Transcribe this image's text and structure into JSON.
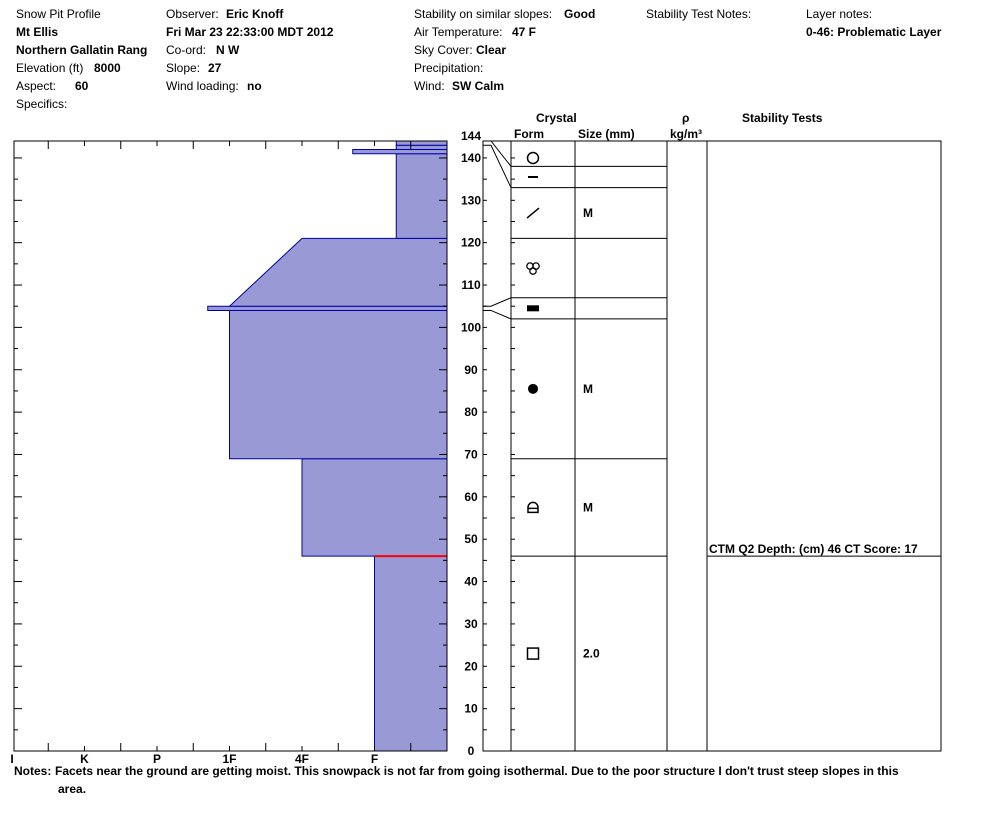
{
  "header": {
    "col1": {
      "title": "Snow Pit Profile",
      "location": "Mt Ellis",
      "range": "Northern Gallatin Rang",
      "elevation_label": "Elevation (ft)",
      "elevation_value": "8000",
      "aspect_label": "Aspect:",
      "aspect_value": "60",
      "specifics_label": "Specifics:"
    },
    "col2": {
      "observer_label": "Observer:",
      "observer_value": "Eric Knoff",
      "date": "Fri Mar 23 22:33:00 MDT 2012",
      "coord_label": "Co-ord:",
      "coord_value": "N  W",
      "slope_label": "Slope:",
      "slope_value": "27",
      "wind_loading_label": "Wind loading:",
      "wind_loading_value": "no"
    },
    "col3": {
      "stability_label": "Stability on similar slopes:",
      "stability_value": "Good",
      "air_temp_label": "Air Temperature:",
      "air_temp_value": "47 F",
      "sky_label": "Sky Cover:",
      "sky_value": "Clear",
      "precip_label": "Precipitation:",
      "wind_label": "Wind:",
      "wind_value": "SW Calm"
    },
    "col4": {
      "stability_test_notes_label": "Stability Test Notes:"
    },
    "col5": {
      "layer_notes_label": "Layer notes:",
      "layer_notes_value": "0-46: Problematic Layer"
    }
  },
  "table_headers": {
    "crystal": "Crystal",
    "form": "Form",
    "size": "Size (mm)",
    "rho": "ρ",
    "density_unit": "kg/m³",
    "stability_tests": "Stability Tests"
  },
  "chart_data": {
    "type": "area",
    "ylim": [
      0,
      144
    ],
    "y_ticks": [
      0,
      10,
      20,
      30,
      40,
      50,
      60,
      70,
      80,
      90,
      100,
      110,
      120,
      130,
      140,
      144
    ],
    "hardness_scale": [
      "F",
      "4F",
      "1F",
      "P",
      "K",
      "I"
    ],
    "hardness_axis_labels": [
      "I",
      "K",
      "P",
      "1F",
      "4F",
      "F"
    ],
    "hardness_layers": [
      {
        "bottom": 0,
        "top": 46,
        "hardness": 1.0
      },
      {
        "bottom": 46,
        "top": 69,
        "hardness": 2.0
      },
      {
        "bottom": 69,
        "top": 104,
        "hardness": 3.0
      },
      {
        "bottom": 104,
        "top": 105,
        "hardness": 3.3
      },
      {
        "bottom": 105,
        "top": 121,
        "hardness_bottom": 3.0,
        "hardness_top": 2.0
      },
      {
        "bottom": 121,
        "top": 141,
        "hardness": 0.7
      },
      {
        "bottom": 141,
        "top": 142,
        "hardness": 1.3
      },
      {
        "bottom": 142,
        "top": 143,
        "hardness": 0.7
      },
      {
        "bottom": 143,
        "top": 144,
        "hardness": 0.7
      }
    ],
    "problem_line_depth": 46,
    "crystal_layers": [
      {
        "bottom": 0,
        "top": 46,
        "form": "faceted",
        "size": "2.0"
      },
      {
        "bottom": 46,
        "top": 69,
        "form": "rounding-faceted",
        "size": "M"
      },
      {
        "bottom": 69,
        "top": 102,
        "form": "rounded",
        "size": "M"
      },
      {
        "bottom": 102,
        "top": 107,
        "form": "crust",
        "size": ""
      },
      {
        "bottom": 107,
        "top": 121,
        "form": "graupel",
        "size": ""
      },
      {
        "bottom": 121,
        "top": 133,
        "form": "decomposing",
        "size": "M"
      },
      {
        "bottom": 133,
        "top": 138,
        "form": "surface-hoar",
        "size": ""
      },
      {
        "bottom": 138,
        "top": 144,
        "form": "new-snow",
        "size": ""
      }
    ],
    "stability_test": {
      "depth": 46,
      "text": "CTM Q2 Depth: (cm) 46 CT Score: 17"
    }
  },
  "notes": {
    "label": "Notes:",
    "line1": "Facets near the ground are getting moist.  This snowpack is not far from going isothermal.  Due to the poor structure I don't trust steep slopes in this",
    "line2": "area."
  },
  "colors": {
    "fill": "#9999d6",
    "outline": "#0000aa",
    "problem": "#ff0000",
    "grid": "#000000"
  }
}
